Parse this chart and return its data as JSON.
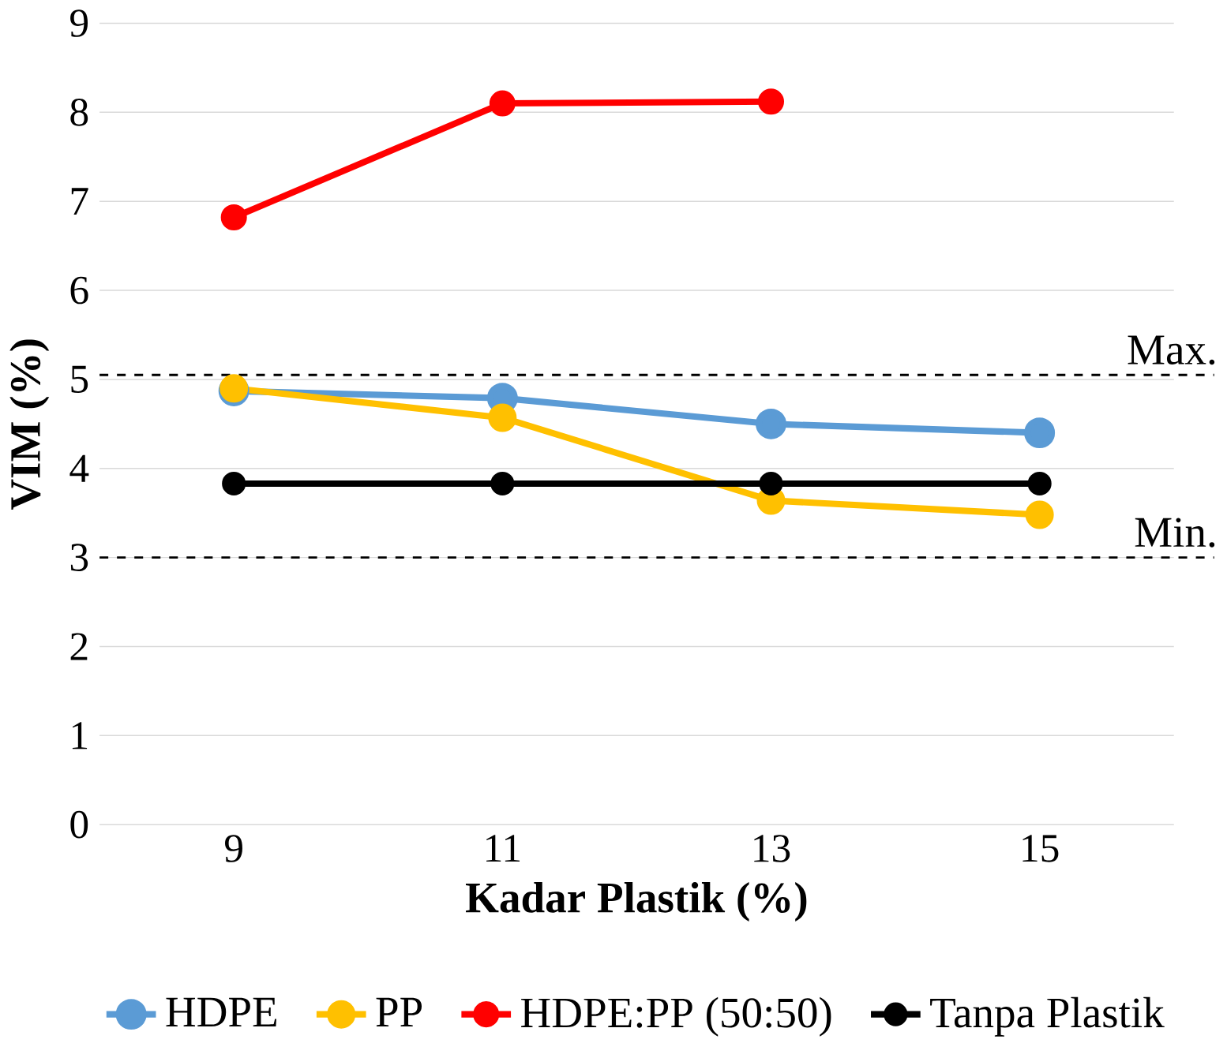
{
  "chart_data": {
    "type": "line",
    "xlabel": "Kadar Plastik (%)",
    "ylabel": "VIM (%)",
    "categories": [
      "9",
      "11",
      "13",
      "15"
    ],
    "series": [
      {
        "name": "HDPE",
        "color": "#5b9bd5",
        "values": [
          4.87,
          4.79,
          4.5,
          4.4
        ]
      },
      {
        "name": "PP",
        "color": "#ffc000",
        "values": [
          4.9,
          4.57,
          3.64,
          3.48
        ]
      },
      {
        "name": "HDPE:PP (50:50)",
        "color": "#ff0000",
        "values": [
          6.82,
          8.1,
          8.12,
          null
        ]
      },
      {
        "name": "Tanpa Plastik",
        "color": "#000000",
        "values": [
          3.83,
          3.83,
          3.83,
          3.83
        ]
      }
    ],
    "ylim": [
      0,
      9
    ],
    "yticks": [
      0,
      1,
      2,
      3,
      4,
      5,
      6,
      7,
      8,
      9
    ],
    "ref_lines": [
      {
        "axis": "y",
        "value": 5.05,
        "label": "Max.",
        "color": "#000000",
        "line_style": "dashed"
      },
      {
        "axis": "y",
        "value": 3.0,
        "label": "Min.",
        "color": "#000000",
        "line_style": "dashed"
      }
    ],
    "grid": "y",
    "legend": "bottom",
    "marker": "circle",
    "line_style": "solid"
  }
}
